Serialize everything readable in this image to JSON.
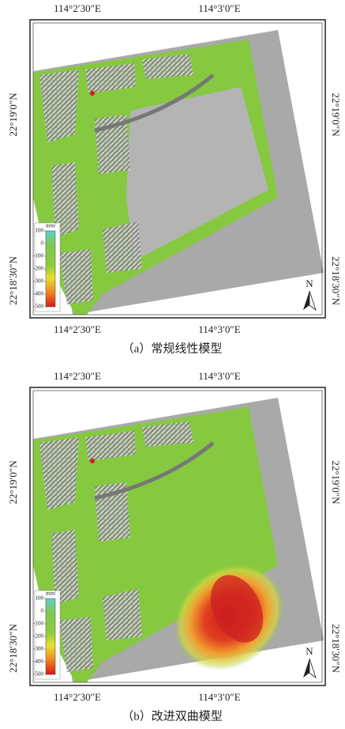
{
  "panels": [
    {
      "top_labels": [
        "114°2′30″E",
        "114°3′0″E"
      ],
      "bottom_labels": [
        "114°2′30″E",
        "114°3′0″E"
      ],
      "left_labels": [
        "22°19′0″N",
        "22°18′30″N"
      ],
      "right_labels": [
        "22°19′0″N",
        "22°18′30″N"
      ],
      "legend": {
        "unit": "mm/",
        "ticks": [
          100,
          0,
          -100,
          -200,
          -300,
          -400,
          -500
        ]
      },
      "north": "N",
      "caption": "（a）常规线性模型"
    },
    {
      "top_labels": [
        "114°2′30″E",
        "114°3′0″E"
      ],
      "bottom_labels": [
        "114°2′30″E",
        "114°3′0″E"
      ],
      "left_labels": [
        "22°19′0″N",
        "22°18′30″N"
      ],
      "right_labels": [
        "22°19′0″N",
        "22°18′30″N"
      ],
      "legend": {
        "unit": "mm/",
        "ticks": [
          100,
          0,
          -100,
          -200,
          -300,
          -400,
          -500
        ]
      },
      "north": "N",
      "caption": "（b）改进双曲模型"
    }
  ]
}
